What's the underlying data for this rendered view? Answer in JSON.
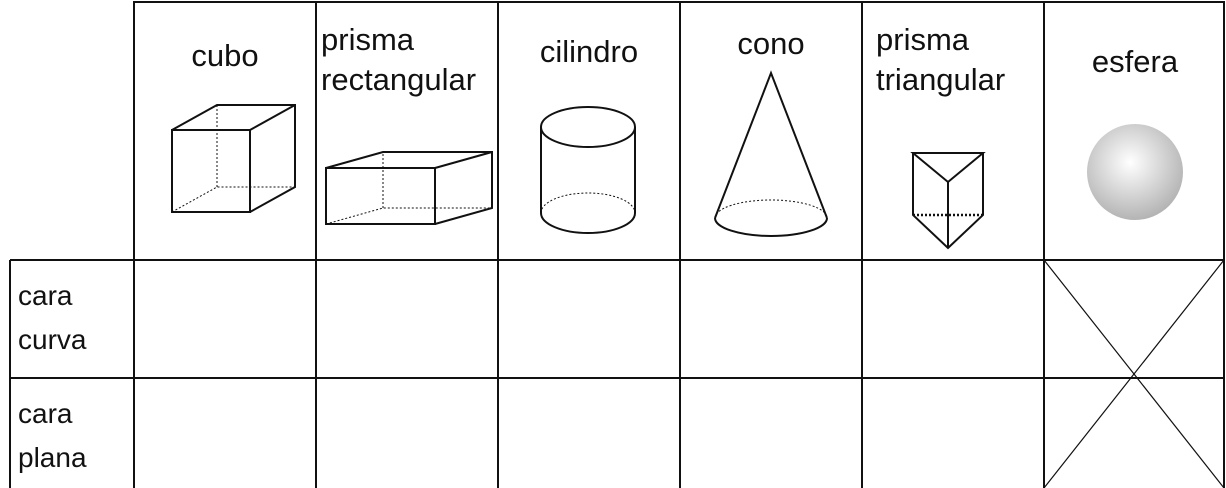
{
  "table": {
    "headers": [
      "cubo",
      "prisma rectangular",
      "cilindro",
      "cono",
      "prisma triangular",
      "esfera"
    ],
    "row_labels": [
      "cara curva",
      "cara plana"
    ]
  }
}
